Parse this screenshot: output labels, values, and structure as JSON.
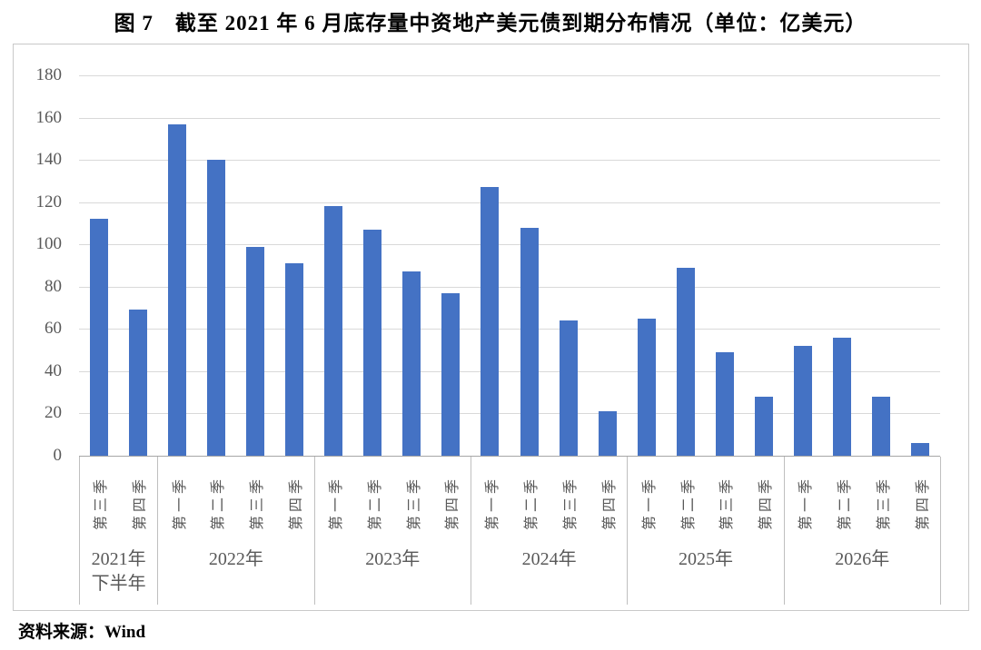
{
  "title": "图 7　截至 2021 年 6 月底存量中资地产美元债到期分布情况（单位：亿美元）",
  "source": "资料来源：Wind",
  "chart_data": {
    "type": "bar",
    "title": "截至2021年6月底存量中资地产美元债到期分布情况",
    "unit": "亿美元",
    "ylim": [
      0,
      180
    ],
    "ytick_step": 20,
    "yticks": [
      0,
      20,
      40,
      60,
      80,
      100,
      120,
      140,
      160,
      180
    ],
    "grid": true,
    "legend": "none",
    "bar_color": "#4472C4",
    "gridline_color": "#d9d9d9",
    "axis_line_color": "#a6a6a6",
    "separator_color": "#bfbfbf",
    "label_color": "#595959",
    "groups": [
      {
        "year_lines": [
          "2021年",
          "下半年"
        ],
        "categories": [
          "第三季",
          "第四季"
        ],
        "values": [
          112,
          69
        ]
      },
      {
        "year_lines": [
          "2022年"
        ],
        "categories": [
          "第一季",
          "第二季",
          "第三季",
          "第四季"
        ],
        "values": [
          157,
          140,
          99,
          91
        ]
      },
      {
        "year_lines": [
          "2023年"
        ],
        "categories": [
          "第一季",
          "第二季",
          "第三季",
          "第四季"
        ],
        "values": [
          118,
          107,
          87,
          77
        ]
      },
      {
        "year_lines": [
          "2024年"
        ],
        "categories": [
          "第一季",
          "第二季",
          "第三季",
          "第四季"
        ],
        "values": [
          127,
          108,
          64,
          21
        ]
      },
      {
        "year_lines": [
          "2025年"
        ],
        "categories": [
          "第一季",
          "第二季",
          "第三季",
          "第四季"
        ],
        "values": [
          65,
          89,
          49,
          28
        ]
      },
      {
        "year_lines": [
          "2026年"
        ],
        "categories": [
          "第一季",
          "第二季",
          "第三季",
          "第四季"
        ],
        "values": [
          52,
          56,
          28,
          6
        ]
      }
    ]
  }
}
